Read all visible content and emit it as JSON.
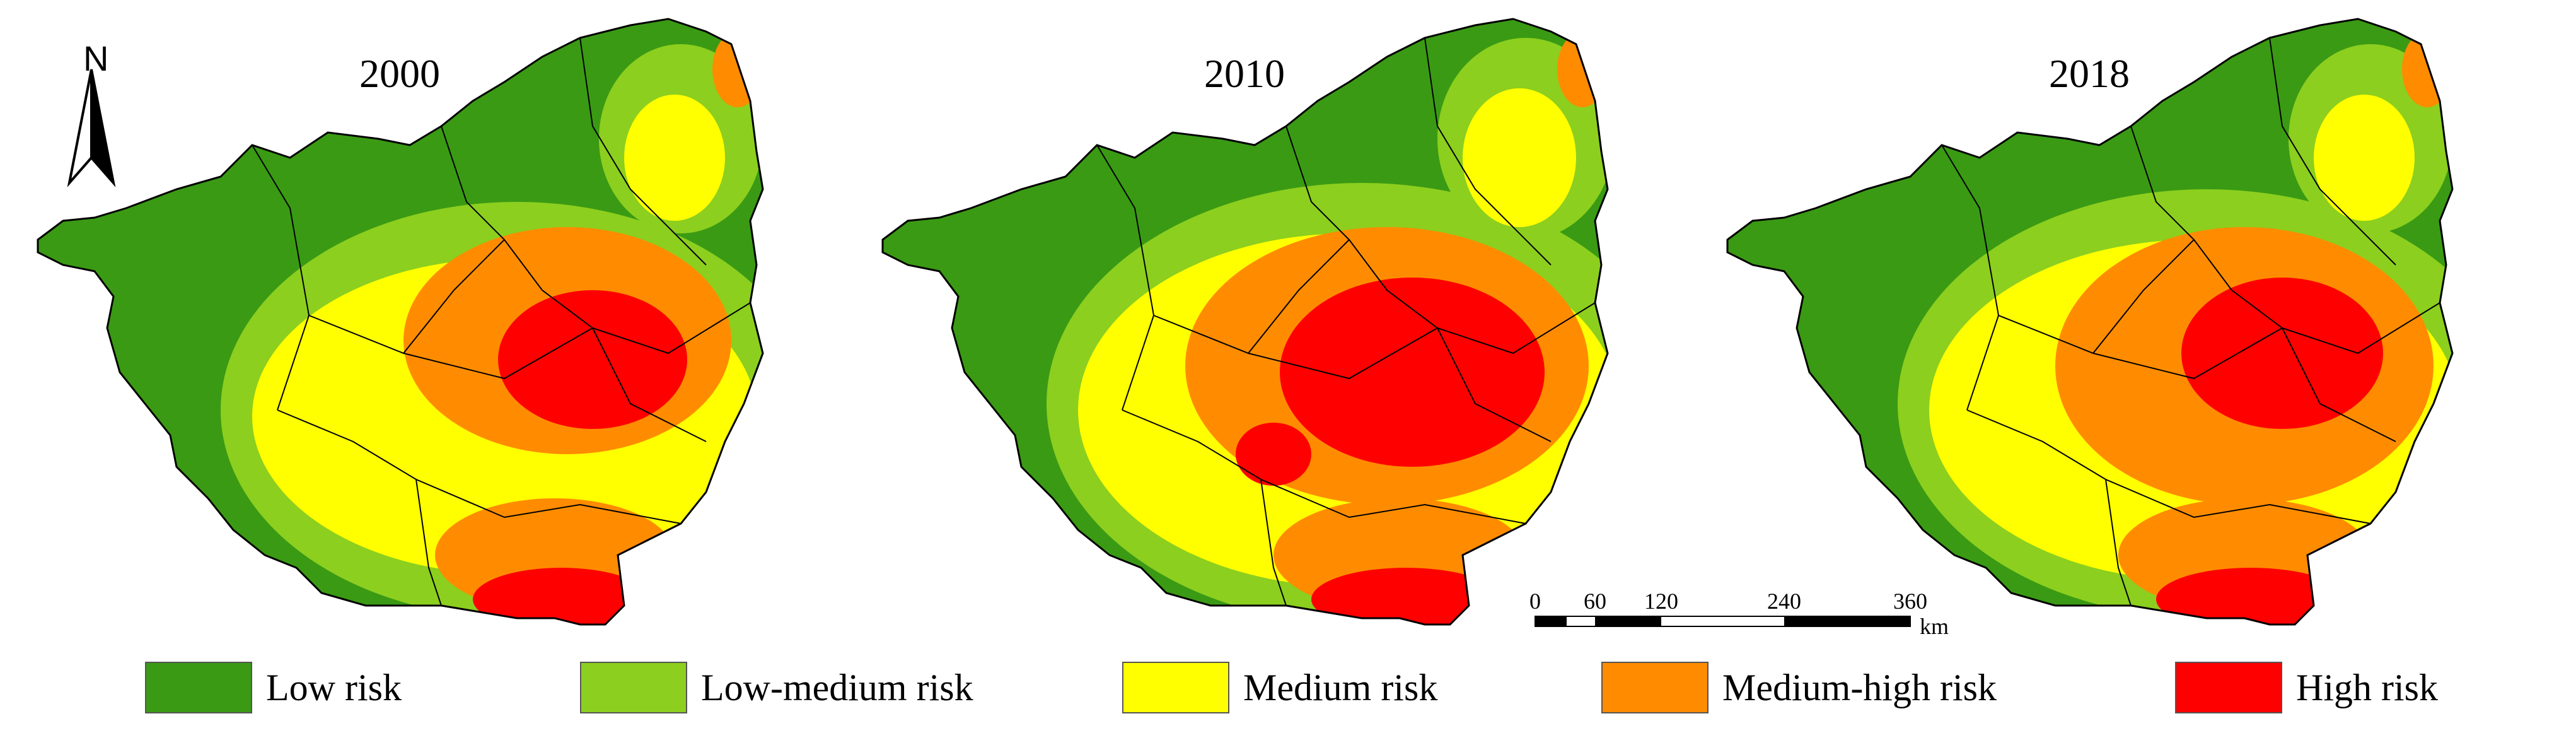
{
  "north_arrow": {
    "letter": "N"
  },
  "maps": [
    {
      "year": "2000"
    },
    {
      "year": "2010"
    },
    {
      "year": "2018"
    }
  ],
  "scale_bar": {
    "ticks": [
      "0",
      "60",
      "120",
      "240",
      "360"
    ],
    "unit": "km"
  },
  "legend": [
    {
      "label": "Low risk",
      "color": "#3a9a14"
    },
    {
      "label": "Low-medium risk",
      "color": "#8ccf1e"
    },
    {
      "label": "Medium risk",
      "color": "#ffff00"
    },
    {
      "label": "Medium-high risk",
      "color": "#ff8c00"
    },
    {
      "label": "High risk",
      "color": "#ff0000"
    }
  ]
}
